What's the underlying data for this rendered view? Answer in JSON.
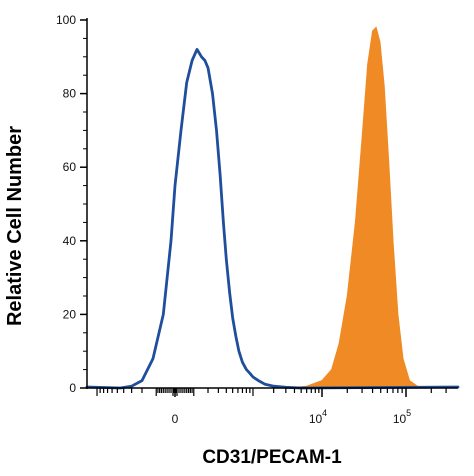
{
  "chart_data": {
    "type": "area",
    "xlabel": "CD31/PECAM-1",
    "ylabel": "Relative Cell Number",
    "x_scale": "biexponential",
    "x_ticks": [
      {
        "value": 0,
        "label": "0",
        "sup": ""
      },
      {
        "value": 10000,
        "label": "10",
        "sup": "4"
      },
      {
        "value": 100000,
        "label": "10",
        "sup": "5"
      }
    ],
    "ylim": [
      0,
      100
    ],
    "y_ticks": [
      0,
      20,
      40,
      60,
      80,
      100
    ],
    "grid": false,
    "legend": "none",
    "series": [
      {
        "style": "outline",
        "color": "#1f4e9c",
        "points": [
          [
            -450,
            0
          ],
          [
            -300,
            0.5
          ],
          [
            -200,
            2
          ],
          [
            -120,
            8
          ],
          [
            -60,
            20
          ],
          [
            -20,
            40
          ],
          [
            0,
            55
          ],
          [
            30,
            70
          ],
          [
            60,
            83
          ],
          [
            90,
            89
          ],
          [
            120,
            92
          ],
          [
            150,
            90
          ],
          [
            175,
            89
          ],
          [
            200,
            87
          ],
          [
            240,
            80
          ],
          [
            280,
            70
          ],
          [
            320,
            58
          ],
          [
            360,
            45
          ],
          [
            400,
            35
          ],
          [
            450,
            26
          ],
          [
            500,
            19
          ],
          [
            560,
            14
          ],
          [
            620,
            10
          ],
          [
            700,
            7
          ],
          [
            800,
            5
          ],
          [
            900,
            4
          ],
          [
            1000,
            3
          ],
          [
            1200,
            2
          ],
          [
            1500,
            1
          ],
          [
            2000,
            0.5
          ],
          [
            3000,
            0.2
          ],
          [
            5000,
            0
          ]
        ]
      },
      {
        "style": "filled",
        "color": "#f08a24",
        "points": [
          [
            3000,
            0
          ],
          [
            6000,
            0.5
          ],
          [
            10000,
            2
          ],
          [
            13000,
            5
          ],
          [
            16000,
            12
          ],
          [
            20000,
            25
          ],
          [
            25000,
            45
          ],
          [
            30000,
            68
          ],
          [
            35000,
            88
          ],
          [
            40000,
            97
          ],
          [
            44000,
            98
          ],
          [
            49000,
            94
          ],
          [
            55000,
            82
          ],
          [
            62000,
            62
          ],
          [
            70000,
            40
          ],
          [
            80000,
            20
          ],
          [
            92000,
            8
          ],
          [
            110000,
            2
          ],
          [
            140000,
            0.3
          ],
          [
            200000,
            0
          ]
        ]
      }
    ]
  }
}
